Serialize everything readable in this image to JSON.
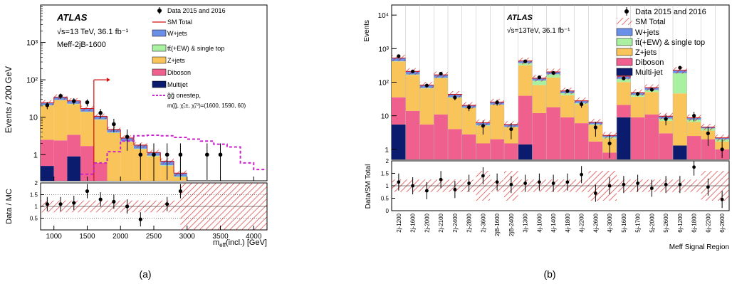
{
  "colors": {
    "wjets": "#6a8fe6",
    "ttbar": "#a9f0a0",
    "zjets": "#f9c45a",
    "diboson": "#f0608f",
    "multijet": "#0b1c6e",
    "sm_total": "#d01010",
    "signal": "#cc22cc"
  },
  "captions": [
    "(a)",
    "(b)"
  ],
  "chart_data": [
    {
      "type": "bar",
      "panel": "a",
      "atlas_label": "ATLAS",
      "energy_label": "√s=13 TeV, 36.1 fb⁻¹",
      "region_label": "Meff-2jB-1600",
      "xlabel": "m_eff(incl.) [GeV]",
      "ylabel": "Events / 200 GeV",
      "ratio_ylabel": "Data / MC",
      "yscale": "log",
      "xlim": [
        800,
        4200
      ],
      "ylim": [
        0.2,
        10000
      ],
      "ratio_ylim": [
        0,
        2
      ],
      "xticks": [
        "1000",
        "1500",
        "2000",
        "2500",
        "3000",
        "3500",
        "4000"
      ],
      "yticks": [
        "1",
        "10",
        "10²",
        "10³"
      ],
      "ratio_yticks": [
        "0.5",
        "1",
        "1.5",
        "2"
      ],
      "legend_placement": "top-right",
      "legend": {
        "data": "Data 2015 and 2016",
        "sm_total": "SM Total",
        "wjets": "W+jets",
        "ttbar": "tt̄(+EW) & single top",
        "zjets": "Z+jets",
        "diboson": "Diboson",
        "multijet": "Multijet",
        "signal_line1": "g̃g̃ onestep,",
        "signal_line2": "m(g̃, χ̃₁±, χ̃₁⁰)=(1600, 1590, 60)"
      },
      "bin_edges": [
        800,
        1000,
        1200,
        1400,
        1600,
        1800,
        2000,
        2200,
        2400,
        2600,
        2800,
        3000
      ],
      "stack": {
        "multijet": [
          0.5,
          0,
          0.9,
          0,
          0,
          0,
          0,
          0,
          0,
          0,
          0
        ],
        "diboson": [
          2.0,
          2.4,
          2.5,
          1.7,
          0.6,
          0.2,
          0,
          0,
          0,
          0,
          0
        ],
        "zjets": [
          18,
          26,
          19,
          12,
          8,
          3.6,
          2.2,
          1.4,
          0.9,
          0.5,
          0.25
        ],
        "ttbar": [
          0.4,
          0.6,
          0.5,
          0.4,
          0.2,
          0.1,
          0.08,
          0.05,
          0.04,
          0.02,
          0.01
        ],
        "wjets": [
          3.5,
          5.5,
          4.5,
          3.0,
          1.8,
          0.8,
          0.5,
          0.35,
          0.2,
          0.15,
          0.06
        ]
      },
      "cut_line_x": 1600,
      "data_points": {
        "x": [
          900,
          1100,
          1300,
          1500,
          1700,
          1900,
          2100,
          2300,
          2500,
          2700,
          2900,
          3300,
          3500
        ],
        "y": [
          21,
          37,
          27,
          25,
          13,
          6.5,
          3,
          1,
          1,
          1,
          1,
          1,
          1
        ]
      },
      "signal": {
        "edges": [
          1400,
          1600,
          1800,
          2000,
          2200,
          2400,
          2600,
          2800,
          3000,
          3200,
          3400,
          3600,
          3800,
          4000,
          4200
        ],
        "values": [
          0.3,
          0.6,
          1.2,
          2.3,
          3.2,
          3.3,
          3.2,
          2.9,
          2.6,
          2.3,
          1.9,
          1.6,
          0.6,
          0.4
        ]
      },
      "ratio_points": {
        "x": [
          900,
          1100,
          1300,
          1500,
          1700,
          1900,
          2100,
          2300,
          2700,
          2900
        ],
        "y": [
          1.1,
          1.1,
          1.15,
          1.65,
          1.3,
          1.2,
          1.0,
          0.45,
          1.1,
          1.65
        ]
      }
    },
    {
      "type": "bar",
      "panel": "b",
      "atlas_label": "ATLAS",
      "energy_label": "√s=13TeV, 36.1 fb⁻¹",
      "xlabel": "Meff Signal Region",
      "ylabel": "Events",
      "ratio_ylabel": "Data/SM Total",
      "yscale": "log",
      "ylim": [
        0.5,
        20000
      ],
      "ratio_ylim": [
        0,
        2
      ],
      "yticks": [
        "1",
        "10",
        "10²",
        "10³",
        "10⁴"
      ],
      "ratio_yticks": [
        "0",
        "0.5",
        "1",
        "1.5",
        "2"
      ],
      "legend_placement": "top-right",
      "legend": {
        "data": "Data 2015 and 2016",
        "sm_total": "SM Total",
        "wjets": "W+jets",
        "ttbar": "tt̄(+EW) & single top",
        "zjets": "Z+jets",
        "diboson": "Diboson",
        "multijet": "Multi-jet"
      },
      "categories": [
        "2j-1200",
        "2j-1600",
        "2j-2000",
        "2j-2100",
        "2j-2400",
        "2j-2800",
        "2j-3600",
        "2jB-1600",
        "2jB-2400",
        "3j-1300",
        "4j-1000",
        "4j-1400",
        "4j-1800",
        "4j-2200",
        "4j-2600",
        "4j-3000",
        "5j-1600",
        "5j-1700",
        "5j-2000",
        "5j-2600",
        "6j-1200",
        "6j-1800",
        "6j-2200",
        "6j-2600"
      ],
      "stack": {
        "multijet": [
          5.5,
          0,
          0,
          0,
          0,
          0,
          0,
          0,
          0,
          1.4,
          0,
          0,
          0,
          0,
          0,
          0,
          9,
          0,
          0,
          0,
          1.3,
          0,
          0,
          0
        ],
        "diboson": [
          30,
          14,
          5.5,
          11,
          4,
          2.8,
          1.5,
          2,
          1.5,
          38,
          12,
          18,
          9,
          6,
          1.7,
          0.8,
          12,
          9,
          11,
          3,
          0,
          2.5,
          2.0,
          1.0
        ],
        "zjets": [
          380,
          150,
          60,
          120,
          30,
          14,
          3.5,
          19,
          3,
          280,
          70,
          120,
          32,
          16,
          3.5,
          1.3,
          80,
          28,
          40,
          4,
          45,
          4,
          1.6,
          0.7
        ],
        "ttbar": [
          10,
          6,
          2,
          5,
          1.5,
          0.6,
          0.2,
          0.6,
          0.2,
          50,
          30,
          35,
          6,
          2,
          0.4,
          0.2,
          25,
          5,
          8,
          1.2,
          140,
          1.2,
          0.6,
          0.3
        ],
        "wjets": [
          100,
          40,
          15,
          30,
          8,
          3,
          1,
          4,
          0.8,
          60,
          20,
          30,
          8,
          4,
          0.8,
          0.3,
          25,
          7,
          10,
          1.5,
          40,
          1,
          0.4,
          0.2
        ]
      },
      "data_points": [
        600,
        210,
        80,
        180,
        35,
        18,
        5,
        25,
        4,
        420,
        140,
        190,
        55,
        22,
        4.5,
        1.5,
        130,
        45,
        60,
        8,
        270,
        10,
        3,
        1
      ],
      "ratio_points": [
        1.15,
        1.0,
        0.8,
        1.25,
        0.85,
        1.1,
        1.4,
        1.15,
        1.05,
        1.1,
        1.15,
        1.1,
        1.15,
        1.45,
        0.7,
        1.0,
        1.05,
        1.1,
        0.9,
        1.05,
        1.05,
        1.75,
        0.95,
        0.45
      ]
    }
  ]
}
